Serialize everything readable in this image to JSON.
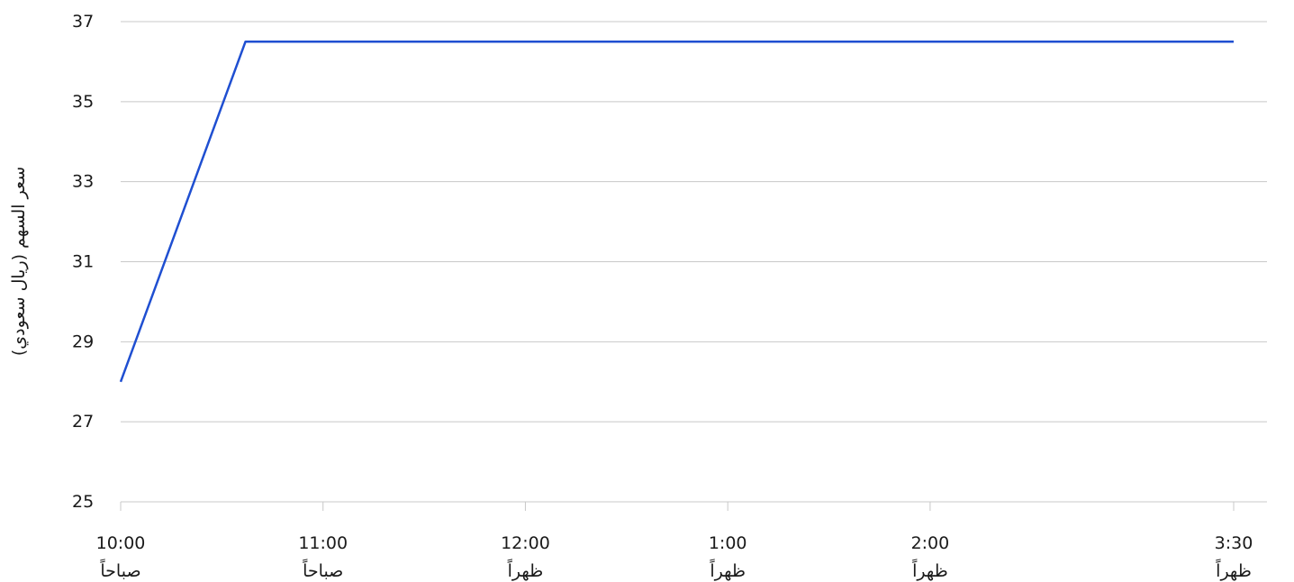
{
  "chart_data": {
    "type": "line",
    "title": "",
    "xlabel": "",
    "ylabel": "سعر السهم (ريال سعودي)",
    "ylim": [
      25,
      37
    ],
    "yticks": [
      25,
      27,
      29,
      31,
      33,
      35,
      37
    ],
    "xlim": [
      600,
      930
    ],
    "x_ticks": [
      {
        "value": 600,
        "time": "10:00",
        "period": "صباحاً"
      },
      {
        "value": 660,
        "time": "11:00",
        "period": "صباحاً"
      },
      {
        "value": 720,
        "time": "12:00",
        "period": "ظهراً"
      },
      {
        "value": 780,
        "time": "1:00",
        "period": "ظهراً"
      },
      {
        "value": 840,
        "time": "2:00",
        "period": "ظهراً"
      },
      {
        "value": 930,
        "time": "3:30",
        "period": "ظهراً"
      }
    ],
    "grid": true,
    "series": [
      {
        "color": "#1f4fd1",
        "points": [
          {
            "x": "10:00",
            "y": 28.0
          },
          {
            "x": "10:37",
            "y": 36.5
          },
          {
            "x": "3:30",
            "y": 36.5
          }
        ]
      }
    ]
  }
}
